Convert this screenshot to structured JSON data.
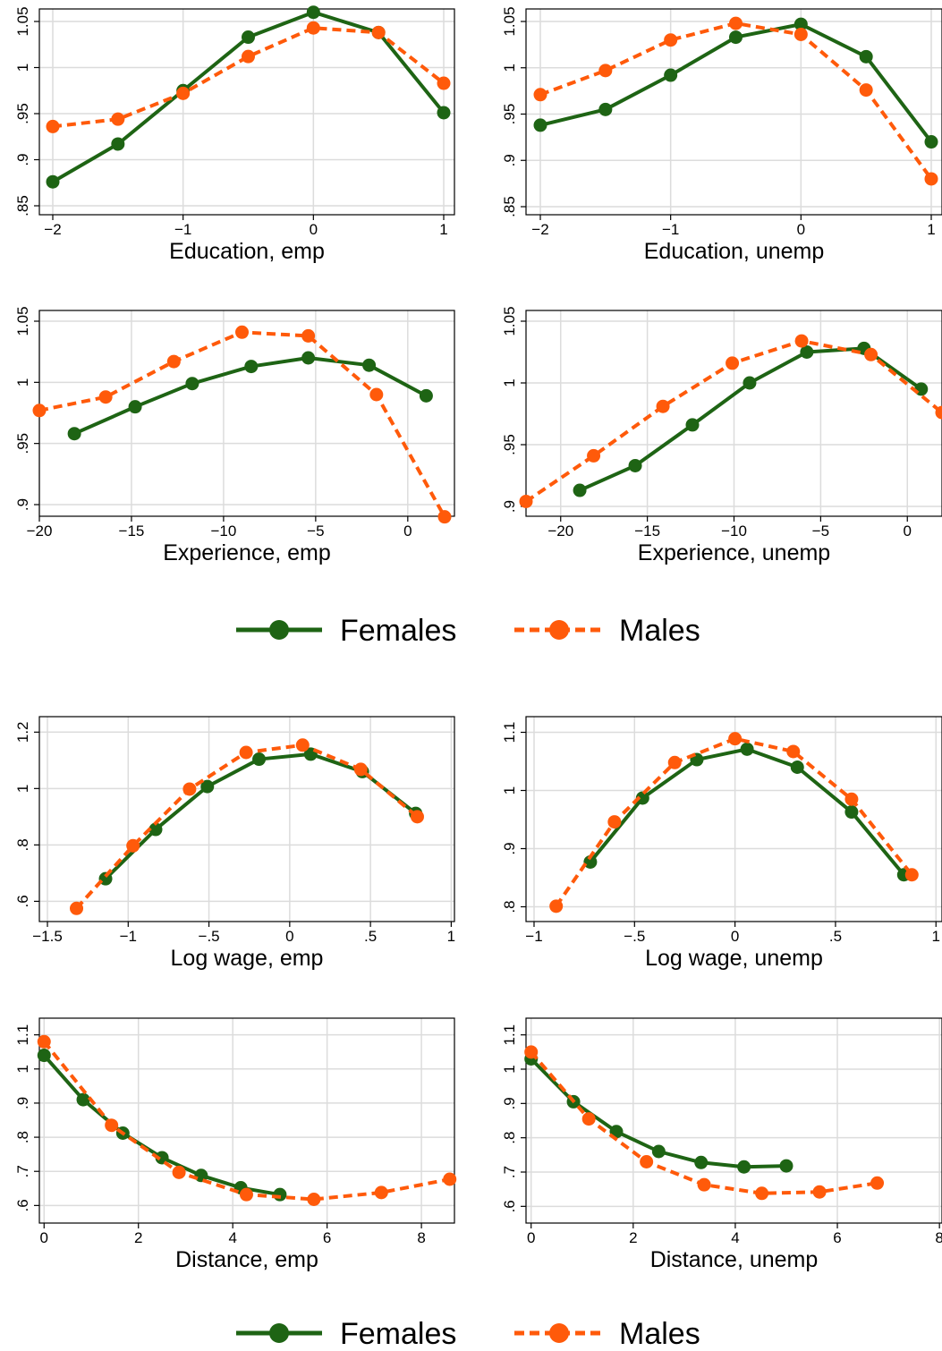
{
  "colors": {
    "females": "#1e6414",
    "males": "#ff5a0a",
    "grid": "#dcdcdc",
    "axis": "#000000"
  },
  "legend": [
    {
      "label": "Females",
      "series": "females",
      "dashed": false
    },
    {
      "label": "Males",
      "series": "males",
      "dashed": true
    }
  ],
  "chart_data": [
    {
      "type": "line",
      "xlabel": "Education, emp",
      "ylabel": "",
      "xlim": [
        -2,
        1
      ],
      "ylim": [
        0.85,
        1.05
      ],
      "xticks": [
        -2,
        -1,
        0,
        1
      ],
      "xtick_labels": [
        "−2",
        "−1",
        "0",
        "1"
      ],
      "yticks": [
        0.85,
        0.9,
        0.95,
        1,
        1.05
      ],
      "ytick_labels": [
        ".85",
        ".9",
        ".95",
        "1",
        "1.05"
      ],
      "series": [
        {
          "name": "Females",
          "key": "females",
          "x": [
            -2,
            -1.5,
            -1,
            -0.5,
            0,
            0.5,
            1
          ],
          "y": [
            0.876,
            0.917,
            0.975,
            1.033,
            1.06,
            1.038,
            0.951
          ]
        },
        {
          "name": "Males",
          "key": "males",
          "x": [
            -2,
            -1.5,
            -1,
            -0.5,
            0,
            0.5,
            1
          ],
          "y": [
            0.936,
            0.944,
            0.972,
            1.012,
            1.043,
            1.038,
            0.983
          ]
        }
      ]
    },
    {
      "type": "line",
      "xlabel": "Education, unemp",
      "ylabel": "",
      "xlim": [
        -2,
        1
      ],
      "ylim": [
        0.85,
        1.05
      ],
      "xticks": [
        -2,
        -1,
        0,
        1
      ],
      "xtick_labels": [
        "−2",
        "−1",
        "0",
        "1"
      ],
      "yticks": [
        0.85,
        0.9,
        0.95,
        1,
        1.05
      ],
      "ytick_labels": [
        ".85",
        ".9",
        ".95",
        "1",
        "1.05"
      ],
      "series": [
        {
          "name": "Females",
          "key": "females",
          "x": [
            -2,
            -1.5,
            -1,
            -0.5,
            0,
            0.5,
            1
          ],
          "y": [
            0.938,
            0.955,
            0.992,
            1.033,
            1.047,
            1.012,
            0.92
          ]
        },
        {
          "name": "Males",
          "key": "males",
          "x": [
            -2,
            -1.5,
            -1,
            -0.5,
            0,
            0.5,
            1
          ],
          "y": [
            0.971,
            0.997,
            1.03,
            1.048,
            1.036,
            0.976,
            0.88
          ]
        }
      ]
    },
    {
      "type": "line",
      "xlabel": "Experience, emp",
      "ylabel": "",
      "xlim": [
        -20,
        2
      ],
      "ylim": [
        0.9,
        1.05
      ],
      "xticks": [
        -20,
        -15,
        -10,
        -5,
        0
      ],
      "xtick_labels": [
        "−20",
        "−15",
        "−10",
        "−5",
        "0"
      ],
      "yticks": [
        0.9,
        0.95,
        1,
        1.05
      ],
      "ytick_labels": [
        ".9",
        ".95",
        "1",
        "1.05"
      ],
      "series": [
        {
          "name": "Females",
          "key": "females",
          "x": [
            -18.1,
            -14.8,
            -11.7,
            -8.5,
            -5.4,
            -2.1,
            1.0
          ],
          "y": [
            0.958,
            0.98,
            0.999,
            1.013,
            1.02,
            1.014,
            0.989
          ]
        },
        {
          "name": "Males",
          "key": "males",
          "x": [
            -20,
            -16.4,
            -12.7,
            -9.0,
            -5.4,
            -1.7,
            2.0
          ],
          "y": [
            0.977,
            0.988,
            1.017,
            1.041,
            1.038,
            0.99,
            0.89
          ]
        }
      ]
    },
    {
      "type": "line",
      "xlabel": "Experience, unemp",
      "ylabel": "",
      "xlim": [
        -22,
        2
      ],
      "ylim": [
        0.9,
        1.05
      ],
      "xticks": [
        -20,
        -15,
        -10,
        -5,
        0
      ],
      "xtick_labels": [
        "−20",
        "−15",
        "−10",
        "−5",
        "0"
      ],
      "yticks": [
        0.9,
        0.95,
        1,
        1.05
      ],
      "ytick_labels": [
        ".9",
        ".95",
        "1",
        "1.05"
      ],
      "series": [
        {
          "name": "Females",
          "key": "females",
          "x": [
            -18.9,
            -15.7,
            -12.4,
            -9.1,
            -5.8,
            -2.5,
            0.8
          ],
          "y": [
            0.913,
            0.933,
            0.966,
            1.0,
            1.025,
            1.028,
            0.995
          ]
        },
        {
          "name": "Males",
          "key": "males",
          "x": [
            -22,
            -18.1,
            -14.1,
            -10.1,
            -6.1,
            -2.1,
            2.0
          ],
          "y": [
            0.904,
            0.941,
            0.981,
            1.016,
            1.034,
            1.023,
            0.976
          ]
        }
      ]
    },
    {
      "type": "line",
      "xlabel": "Log wage, emp",
      "ylabel": "",
      "xlim": [
        -1.55,
        1.02
      ],
      "ylim": [
        0.56,
        1.22
      ],
      "xticks": [
        -1.5,
        -1,
        -0.5,
        0,
        0.5,
        1
      ],
      "xtick_labels": [
        "−1.5",
        "−1",
        "−.5",
        "0",
        ".5",
        "1"
      ],
      "yticks": [
        0.6,
        0.8,
        1,
        1.2
      ],
      "ytick_labels": [
        ".6",
        ".8",
        "1",
        "1.2"
      ],
      "series": [
        {
          "name": "Females",
          "key": "females",
          "x": [
            -1.14,
            -0.83,
            -0.51,
            -0.19,
            0.13,
            0.45,
            0.78
          ],
          "y": [
            0.68,
            0.855,
            1.007,
            1.104,
            1.122,
            1.06,
            0.912
          ]
        },
        {
          "name": "Males",
          "key": "males",
          "x": [
            -1.32,
            -0.97,
            -0.62,
            -0.27,
            0.08,
            0.44,
            0.79
          ],
          "y": [
            0.575,
            0.797,
            0.998,
            1.128,
            1.154,
            1.068,
            0.9
          ]
        }
      ]
    },
    {
      "type": "line",
      "xlabel": "Log wage, unemp",
      "ylabel": "",
      "xlim": [
        -1.04,
        1.03
      ],
      "ylim": [
        0.79,
        1.11
      ],
      "xticks": [
        -1,
        -0.5,
        0,
        0.5,
        1
      ],
      "xtick_labels": [
        "−1",
        "−.5",
        "0",
        ".5",
        "1"
      ],
      "yticks": [
        0.8,
        0.9,
        1,
        1.1
      ],
      "ytick_labels": [
        ".8",
        ".9",
        "1",
        "1.1"
      ],
      "series": [
        {
          "name": "Females",
          "key": "females",
          "x": [
            -0.72,
            -0.46,
            -0.19,
            0.06,
            0.31,
            0.58,
            0.84
          ],
          "y": [
            0.877,
            0.987,
            1.053,
            1.071,
            1.04,
            0.963,
            0.855
          ]
        },
        {
          "name": "Males",
          "key": "males",
          "x": [
            -0.89,
            -0.6,
            -0.3,
            0.0,
            0.29,
            0.58,
            0.88
          ],
          "y": [
            0.801,
            0.946,
            1.048,
            1.089,
            1.067,
            0.985,
            0.855
          ]
        }
      ]
    },
    {
      "type": "line",
      "xlabel": "Distance, emp",
      "ylabel": "",
      "xlim": [
        -0.1,
        8.7
      ],
      "ylim": [
        0.58,
        1.12
      ],
      "xticks": [
        0,
        2,
        4,
        6,
        8
      ],
      "xtick_labels": [
        "0",
        "2",
        "4",
        "6",
        "8"
      ],
      "yticks": [
        0.6,
        0.7,
        0.8,
        0.9,
        1,
        1.1
      ],
      "ytick_labels": [
        ".6",
        ".7",
        ".8",
        ".9",
        "1",
        "1.1"
      ],
      "series": [
        {
          "name": "Females",
          "key": "females",
          "x": [
            0,
            0.83,
            1.67,
            2.5,
            3.33,
            4.17,
            5.0
          ],
          "y": [
            1.04,
            0.91,
            0.812,
            0.74,
            0.688,
            0.652,
            0.632
          ]
        },
        {
          "name": "Males",
          "key": "males",
          "x": [
            0,
            1.43,
            2.86,
            4.29,
            5.72,
            7.15,
            8.6
          ],
          "y": [
            1.08,
            0.835,
            0.697,
            0.632,
            0.618,
            0.638,
            0.677
          ]
        }
      ]
    },
    {
      "type": "line",
      "xlabel": "Distance, unemp",
      "ylabel": "",
      "xlim": [
        -0.1,
        8.05
      ],
      "ylim": [
        0.58,
        1.12
      ],
      "xticks": [
        0,
        2,
        4,
        6,
        8
      ],
      "xtick_labels": [
        "0",
        "2",
        "4",
        "6",
        "8"
      ],
      "yticks": [
        0.6,
        0.7,
        0.8,
        0.9,
        1,
        1.1
      ],
      "ytick_labels": [
        ".6",
        ".7",
        ".8",
        ".9",
        "1",
        "1.1"
      ],
      "series": [
        {
          "name": "Females",
          "key": "females",
          "x": [
            0,
            0.83,
            1.67,
            2.5,
            3.33,
            4.17,
            5.0
          ],
          "y": [
            1.03,
            0.905,
            0.818,
            0.76,
            0.728,
            0.715,
            0.718
          ]
        },
        {
          "name": "Males",
          "key": "males",
          "x": [
            0,
            1.13,
            2.26,
            3.39,
            4.52,
            5.65,
            6.78
          ],
          "y": [
            1.05,
            0.855,
            0.73,
            0.663,
            0.638,
            0.642,
            0.668
          ]
        }
      ]
    }
  ]
}
